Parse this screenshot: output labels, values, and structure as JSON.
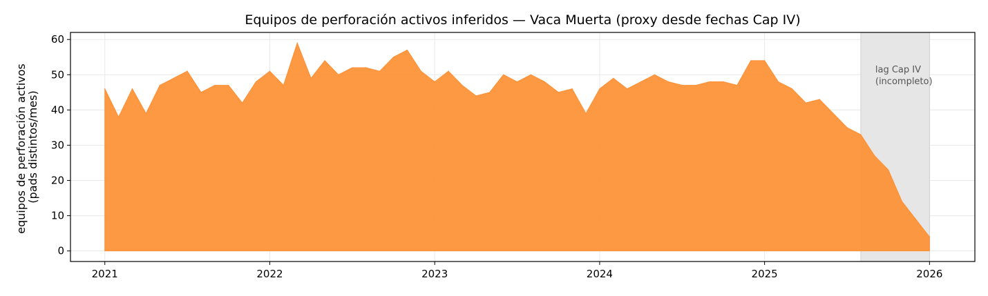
{
  "chart_data": {
    "type": "area",
    "title": "Equipos de perforación activos inferidos — Vaca Muerta (proxy desde fechas Cap IV)",
    "ylabel_lines": [
      "equipos de perforación activos",
      "(pads distintos/mes)"
    ],
    "xlabel": "",
    "x_start": "2021-01",
    "x_ticks": [
      {
        "label": "2021",
        "month_index": 0
      },
      {
        "label": "2022",
        "month_index": 12
      },
      {
        "label": "2023",
        "month_index": 24
      },
      {
        "label": "2024",
        "month_index": 36
      },
      {
        "label": "2025",
        "month_index": 48
      },
      {
        "label": "2026",
        "month_index": 60
      }
    ],
    "y_ticks": [
      0,
      10,
      20,
      30,
      40,
      50,
      60
    ],
    "xlim_months": [
      -2.5,
      63.3
    ],
    "ylim": [
      -3,
      62
    ],
    "grid": true,
    "color": "#fd8f33",
    "values": [
      46,
      38,
      46,
      39,
      47,
      49,
      51,
      45,
      47,
      47,
      42,
      48,
      51,
      47,
      59,
      49,
      54,
      50,
      52,
      52,
      51,
      55,
      57,
      51,
      48,
      51,
      47,
      44,
      45,
      50,
      48,
      50,
      48,
      45,
      46,
      39,
      46,
      49,
      46,
      48,
      50,
      48,
      47,
      47,
      48,
      48,
      47,
      54,
      54,
      48,
      46,
      42,
      43,
      39,
      35,
      33,
      27,
      23,
      14,
      9,
      4
    ],
    "shaded_region": {
      "start_month_index": 55,
      "end_month_index": 60,
      "label_lines": [
        "lag Cap IV",
        "(incompleto)"
      ],
      "color": "#e6e6e6"
    }
  }
}
